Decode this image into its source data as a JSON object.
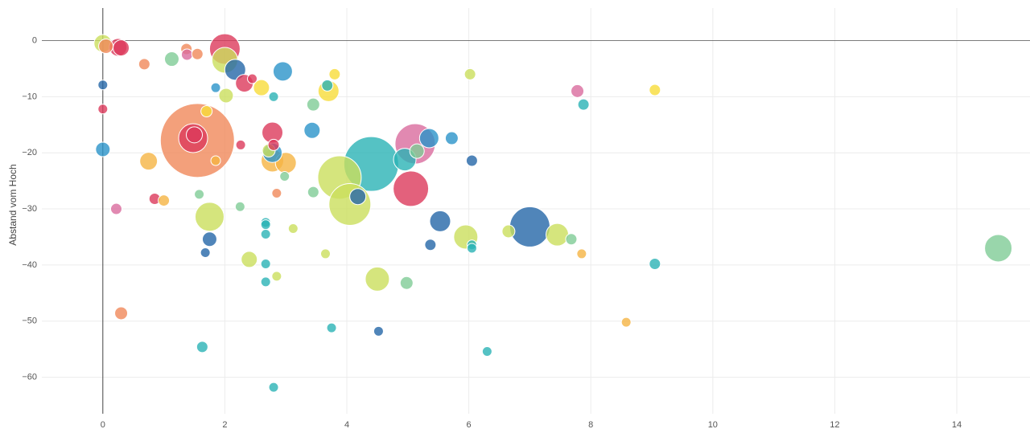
{
  "chart_data": {
    "type": "scatter",
    "title": "",
    "xlabel": "",
    "ylabel": "Abstand vom Hoch",
    "xlim": [
      -1.0,
      15.2
    ],
    "ylim": [
      -66.5,
      5.8
    ],
    "x_ticks": [
      0,
      2,
      4,
      6,
      8,
      10,
      12,
      14
    ],
    "y_ticks": [
      0,
      -10,
      -20,
      -30,
      -40,
      -50,
      -60
    ],
    "x_tick_labels": [
      "0",
      "2",
      "4",
      "6",
      "8",
      "10",
      "12",
      "14"
    ],
    "y_tick_labels": [
      "0",
      "−10",
      "−20",
      "−30",
      "−40",
      "−50",
      "−60"
    ],
    "grid": true,
    "legend": "none",
    "bubble_opacity": 0.8,
    "colors": {
      "red": "#dc3a5b",
      "orange": "#f0885a",
      "yellow": "#f7dc3a",
      "gold": "#f5b444",
      "lime": "#cbdf5c",
      "green": "#80cc96",
      "teal": "#2ab3b5",
      "blue": "#2b93c9",
      "navy": "#2467a8",
      "pink": "#d96b9e"
    },
    "points": [
      {
        "x": 0.0,
        "y": -0.5,
        "size": 11,
        "color": "lime"
      },
      {
        "x": 0.05,
        "y": -1.0,
        "size": 9,
        "color": "orange"
      },
      {
        "x": 0.25,
        "y": -1.2,
        "size": 11,
        "color": "red"
      },
      {
        "x": 0.3,
        "y": -1.3,
        "size": 10,
        "color": "red"
      },
      {
        "x": 0.0,
        "y": -7.9,
        "size": 6,
        "color": "navy"
      },
      {
        "x": 0.0,
        "y": -12.2,
        "size": 6,
        "color": "red"
      },
      {
        "x": 0.0,
        "y": -19.4,
        "size": 9,
        "color": "blue"
      },
      {
        "x": 0.22,
        "y": -30.0,
        "size": 7,
        "color": "pink"
      },
      {
        "x": 0.3,
        "y": -48.6,
        "size": 8,
        "color": "orange"
      },
      {
        "x": 0.68,
        "y": -4.2,
        "size": 7,
        "color": "orange"
      },
      {
        "x": 0.75,
        "y": -21.5,
        "size": 11,
        "color": "gold"
      },
      {
        "x": 0.85,
        "y": -28.2,
        "size": 7,
        "color": "red"
      },
      {
        "x": 1.0,
        "y": -28.5,
        "size": 7,
        "color": "gold"
      },
      {
        "x": 1.13,
        "y": -3.3,
        "size": 9,
        "color": "green"
      },
      {
        "x": 1.37,
        "y": -1.5,
        "size": 7,
        "color": "orange"
      },
      {
        "x": 1.38,
        "y": -2.5,
        "size": 7,
        "color": "pink"
      },
      {
        "x": 1.55,
        "y": -2.4,
        "size": 7,
        "color": "orange"
      },
      {
        "x": 1.55,
        "y": -17.8,
        "size": 46,
        "color": "orange"
      },
      {
        "x": 1.48,
        "y": -17.4,
        "size": 18,
        "color": "red"
      },
      {
        "x": 1.5,
        "y": -16.8,
        "size": 10,
        "color": "red"
      },
      {
        "x": 1.7,
        "y": -12.6,
        "size": 7,
        "color": "yellow"
      },
      {
        "x": 1.85,
        "y": -21.4,
        "size": 6,
        "color": "gold"
      },
      {
        "x": 1.58,
        "y": -27.4,
        "size": 6,
        "color": "green"
      },
      {
        "x": 1.75,
        "y": -31.4,
        "size": 18,
        "color": "lime"
      },
      {
        "x": 1.75,
        "y": -35.4,
        "size": 9,
        "color": "navy"
      },
      {
        "x": 1.68,
        "y": -37.8,
        "size": 6,
        "color": "navy"
      },
      {
        "x": 1.63,
        "y": -54.6,
        "size": 7,
        "color": "teal"
      },
      {
        "x": 1.85,
        "y": -8.4,
        "size": 6,
        "color": "blue"
      },
      {
        "x": 2.0,
        "y": -3.5,
        "size": 16,
        "color": "lime"
      },
      {
        "x": 2.0,
        "y": -1.5,
        "size": 19,
        "color": "red"
      },
      {
        "x": 2.17,
        "y": -5.2,
        "size": 13,
        "color": "navy"
      },
      {
        "x": 2.32,
        "y": -7.6,
        "size": 11,
        "color": "red"
      },
      {
        "x": 2.45,
        "y": -6.8,
        "size": 6,
        "color": "red"
      },
      {
        "x": 2.02,
        "y": -9.8,
        "size": 9,
        "color": "lime"
      },
      {
        "x": 2.6,
        "y": -8.4,
        "size": 10,
        "color": "yellow"
      },
      {
        "x": 2.26,
        "y": -18.6,
        "size": 6,
        "color": "red"
      },
      {
        "x": 2.25,
        "y": -29.6,
        "size": 6,
        "color": "green"
      },
      {
        "x": 2.4,
        "y": -39.0,
        "size": 10,
        "color": "lime"
      },
      {
        "x": 2.8,
        "y": -10.0,
        "size": 6,
        "color": "teal"
      },
      {
        "x": 2.95,
        "y": -5.5,
        "size": 12,
        "color": "blue"
      },
      {
        "x": 2.78,
        "y": -16.4,
        "size": 13,
        "color": "red"
      },
      {
        "x": 2.8,
        "y": -18.6,
        "size": 7,
        "color": "red"
      },
      {
        "x": 2.72,
        "y": -19.6,
        "size": 8,
        "color": "lime"
      },
      {
        "x": 2.78,
        "y": -20.0,
        "size": 12,
        "color": "blue"
      },
      {
        "x": 2.78,
        "y": -21.4,
        "size": 14,
        "color": "gold"
      },
      {
        "x": 3.0,
        "y": -21.8,
        "size": 13,
        "color": "gold"
      },
      {
        "x": 2.98,
        "y": -24.2,
        "size": 6,
        "color": "green"
      },
      {
        "x": 2.85,
        "y": -27.2,
        "size": 6,
        "color": "orange"
      },
      {
        "x": 2.67,
        "y": -32.4,
        "size": 6,
        "color": "teal"
      },
      {
        "x": 2.67,
        "y": -32.8,
        "size": 6,
        "color": "teal"
      },
      {
        "x": 2.67,
        "y": -34.5,
        "size": 6,
        "color": "teal"
      },
      {
        "x": 2.67,
        "y": -39.8,
        "size": 6,
        "color": "teal"
      },
      {
        "x": 2.67,
        "y": -43.0,
        "size": 6,
        "color": "teal"
      },
      {
        "x": 2.85,
        "y": -42.0,
        "size": 6,
        "color": "lime"
      },
      {
        "x": 2.8,
        "y": -61.8,
        "size": 6,
        "color": "teal"
      },
      {
        "x": 3.12,
        "y": -33.5,
        "size": 6,
        "color": "lime"
      },
      {
        "x": 3.45,
        "y": -11.4,
        "size": 8,
        "color": "green"
      },
      {
        "x": 3.43,
        "y": -16.0,
        "size": 10,
        "color": "blue"
      },
      {
        "x": 3.45,
        "y": -27.0,
        "size": 7,
        "color": "green"
      },
      {
        "x": 3.65,
        "y": -38.0,
        "size": 6,
        "color": "lime"
      },
      {
        "x": 3.7,
        "y": -9.0,
        "size": 13,
        "color": "yellow"
      },
      {
        "x": 3.68,
        "y": -8.0,
        "size": 7,
        "color": "teal"
      },
      {
        "x": 3.8,
        "y": -6.0,
        "size": 7,
        "color": "yellow"
      },
      {
        "x": 3.75,
        "y": -51.2,
        "size": 6,
        "color": "teal"
      },
      {
        "x": 3.88,
        "y": -24.4,
        "size": 27,
        "color": "lime"
      },
      {
        "x": 4.05,
        "y": -29.2,
        "size": 26,
        "color": "lime"
      },
      {
        "x": 4.18,
        "y": -27.8,
        "size": 10,
        "color": "navy"
      },
      {
        "x": 4.4,
        "y": -22.0,
        "size": 34,
        "color": "teal"
      },
      {
        "x": 4.5,
        "y": -42.5,
        "size": 15,
        "color": "lime"
      },
      {
        "x": 4.52,
        "y": -51.8,
        "size": 6,
        "color": "navy"
      },
      {
        "x": 4.98,
        "y": -43.2,
        "size": 8,
        "color": "green"
      },
      {
        "x": 4.95,
        "y": -21.2,
        "size": 14,
        "color": "teal"
      },
      {
        "x": 5.05,
        "y": -26.4,
        "size": 22,
        "color": "red"
      },
      {
        "x": 5.12,
        "y": -18.4,
        "size": 25,
        "color": "pink"
      },
      {
        "x": 5.15,
        "y": -19.7,
        "size": 9,
        "color": "green"
      },
      {
        "x": 5.35,
        "y": -17.4,
        "size": 12,
        "color": "blue"
      },
      {
        "x": 5.37,
        "y": -36.4,
        "size": 7,
        "color": "navy"
      },
      {
        "x": 5.53,
        "y": -32.2,
        "size": 13,
        "color": "navy"
      },
      {
        "x": 5.72,
        "y": -17.4,
        "size": 8,
        "color": "blue"
      },
      {
        "x": 5.95,
        "y": -35.0,
        "size": 15,
        "color": "lime"
      },
      {
        "x": 6.02,
        "y": -6.0,
        "size": 7,
        "color": "lime"
      },
      {
        "x": 6.05,
        "y": -21.4,
        "size": 7,
        "color": "navy"
      },
      {
        "x": 6.05,
        "y": -36.4,
        "size": 6,
        "color": "teal"
      },
      {
        "x": 6.05,
        "y": -37.0,
        "size": 6,
        "color": "teal"
      },
      {
        "x": 6.3,
        "y": -55.4,
        "size": 6,
        "color": "teal"
      },
      {
        "x": 6.65,
        "y": -34.0,
        "size": 8,
        "color": "lime"
      },
      {
        "x": 7.0,
        "y": -33.2,
        "size": 25,
        "color": "navy"
      },
      {
        "x": 7.45,
        "y": -34.6,
        "size": 14,
        "color": "lime"
      },
      {
        "x": 7.68,
        "y": -35.4,
        "size": 7,
        "color": "green"
      },
      {
        "x": 7.78,
        "y": -9.0,
        "size": 8,
        "color": "pink"
      },
      {
        "x": 7.88,
        "y": -11.4,
        "size": 7,
        "color": "teal"
      },
      {
        "x": 7.85,
        "y": -38.0,
        "size": 6,
        "color": "gold"
      },
      {
        "x": 8.58,
        "y": -50.2,
        "size": 6,
        "color": "gold"
      },
      {
        "x": 9.05,
        "y": -8.8,
        "size": 7,
        "color": "yellow"
      },
      {
        "x": 9.05,
        "y": -39.8,
        "size": 7,
        "color": "teal"
      },
      {
        "x": 14.68,
        "y": -37.0,
        "size": 17,
        "color": "green"
      }
    ]
  }
}
